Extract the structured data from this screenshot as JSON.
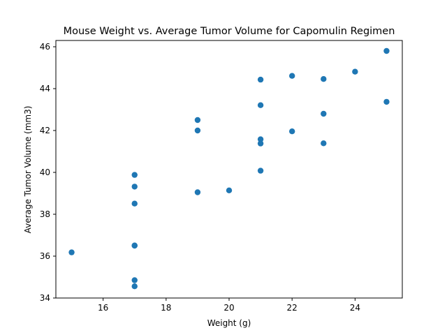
{
  "chart_data": {
    "type": "scatter",
    "title": "Mouse Weight vs. Average Tumor Volume for Capomulin Regimen",
    "xlabel": "Weight (g)",
    "ylabel": "Average Tumor Volume (mm3)",
    "xlim": [
      14.5,
      25.5
    ],
    "ylim": [
      34,
      46.3
    ],
    "xticks": [
      16,
      18,
      20,
      22,
      24
    ],
    "yticks": [
      34,
      36,
      38,
      40,
      42,
      44,
      46
    ],
    "grid": false,
    "legend": "none",
    "marker_color": "#1f77b4",
    "points": [
      {
        "x": 15,
        "y": 36.18
      },
      {
        "x": 17,
        "y": 39.88
      },
      {
        "x": 17,
        "y": 39.32
      },
      {
        "x": 17,
        "y": 38.51
      },
      {
        "x": 17,
        "y": 36.51
      },
      {
        "x": 17,
        "y": 36.5
      },
      {
        "x": 17,
        "y": 34.85
      },
      {
        "x": 17,
        "y": 34.56
      },
      {
        "x": 19,
        "y": 42.5
      },
      {
        "x": 19,
        "y": 42.0
      },
      {
        "x": 19,
        "y": 39.05
      },
      {
        "x": 20,
        "y": 39.14
      },
      {
        "x": 21,
        "y": 44.43
      },
      {
        "x": 21,
        "y": 43.21
      },
      {
        "x": 21,
        "y": 41.58
      },
      {
        "x": 21,
        "y": 41.38
      },
      {
        "x": 21,
        "y": 40.08
      },
      {
        "x": 22,
        "y": 44.61
      },
      {
        "x": 22,
        "y": 41.96
      },
      {
        "x": 23,
        "y": 44.46
      },
      {
        "x": 23,
        "y": 42.8
      },
      {
        "x": 23,
        "y": 41.39
      },
      {
        "x": 24,
        "y": 44.81
      },
      {
        "x": 25,
        "y": 45.8
      },
      {
        "x": 25,
        "y": 43.37
      }
    ]
  }
}
